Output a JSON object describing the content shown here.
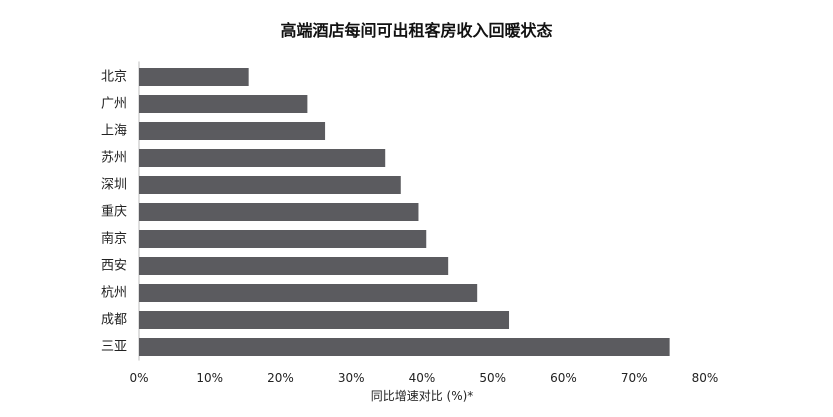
{
  "chart_data": {
    "type": "bar",
    "orientation": "horizontal",
    "title": "高端酒店每间可出租客房收入回暖状态",
    "xlabel": "同比增速对比 (%)*",
    "ylabel": "",
    "categories": [
      "北京",
      "广州",
      "上海",
      "苏州",
      "深圳",
      "重庆",
      "南京",
      "西安",
      "杭州",
      "成都",
      "三亚"
    ],
    "values": [
      15.5,
      23.8,
      26.3,
      34.8,
      37.0,
      39.5,
      40.6,
      43.7,
      47.8,
      52.3,
      75.0
    ],
    "unit": "%",
    "xlim": [
      0,
      80
    ],
    "xticks": [
      "0%",
      "10%",
      "20%",
      "30%",
      "40%",
      "50%",
      "60%",
      "70%",
      "80%"
    ],
    "bar_color": "#5b5b5f",
    "grid": false,
    "legend": "none"
  }
}
